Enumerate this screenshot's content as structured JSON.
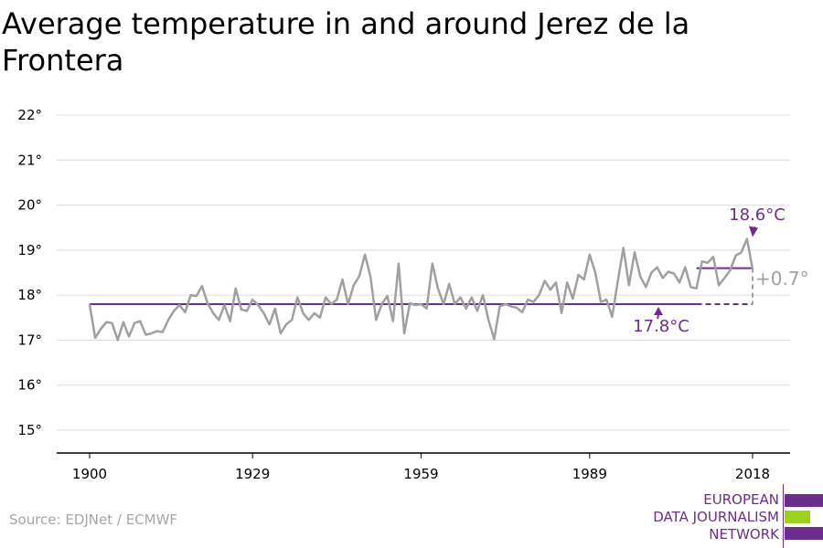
{
  "title": "Average temperature in and around Jerez de la Frontera",
  "source": "Source: EDJNet / ECMWF",
  "logo": {
    "lines": [
      "EUROPEAN",
      "DATA JOURNALISM",
      "NETWORK"
    ],
    "colors": [
      "#6c2d8c",
      "#9ed11f",
      "#6c2d8c"
    ]
  },
  "colors": {
    "series": "#a0a0a0",
    "accent": "#6c2d8c",
    "grid": "#dcdcdc",
    "axis": "#000000",
    "diff": "#a0a0a0"
  },
  "chart_data": {
    "type": "line",
    "title": "Average temperature in and around Jerez de la Frontera",
    "xlim": [
      1900,
      2018
    ],
    "ylim": [
      15,
      22
    ],
    "y_ticks": [
      15,
      16,
      17,
      18,
      19,
      20,
      21,
      22
    ],
    "y_tick_labels": [
      "15°",
      "16°",
      "17°",
      "18°",
      "19°",
      "20°",
      "21°",
      "22°"
    ],
    "x_ticks": [
      1900,
      1929,
      1959,
      1989,
      2018
    ],
    "x_tick_labels": [
      "1900",
      "1929",
      "1959",
      "1989",
      "2018"
    ],
    "grid": true,
    "x": [
      1900,
      1901,
      1902,
      1903,
      1904,
      1905,
      1906,
      1907,
      1908,
      1909,
      1910,
      1911,
      1912,
      1913,
      1914,
      1915,
      1916,
      1917,
      1918,
      1919,
      1920,
      1921,
      1922,
      1923,
      1924,
      1925,
      1926,
      1927,
      1928,
      1929,
      1930,
      1931,
      1932,
      1933,
      1934,
      1935,
      1936,
      1937,
      1938,
      1939,
      1940,
      1941,
      1942,
      1943,
      1944,
      1945,
      1946,
      1947,
      1948,
      1949,
      1950,
      1951,
      1952,
      1953,
      1954,
      1955,
      1956,
      1957,
      1958,
      1959,
      1960,
      1961,
      1962,
      1963,
      1964,
      1965,
      1966,
      1967,
      1968,
      1969,
      1970,
      1971,
      1972,
      1973,
      1974,
      1975,
      1976,
      1977,
      1978,
      1979,
      1980,
      1981,
      1982,
      1983,
      1984,
      1985,
      1986,
      1987,
      1988,
      1989,
      1990,
      1991,
      1992,
      1993,
      1994,
      1995,
      1996,
      1997,
      1998,
      1999,
      2000,
      2001,
      2002,
      2003,
      2004,
      2005,
      2006,
      2007,
      2008,
      2009,
      2010,
      2011,
      2012,
      2013,
      2014,
      2015,
      2016,
      2017,
      2018
    ],
    "series": [
      {
        "values": [
          17.8,
          17.05,
          17.25,
          17.4,
          17.38,
          17.0,
          17.4,
          17.08,
          17.38,
          17.42,
          17.12,
          17.15,
          17.2,
          17.18,
          17.45,
          17.65,
          17.78,
          17.62,
          18.0,
          17.98,
          18.2,
          17.82,
          17.6,
          17.45,
          17.78,
          17.42,
          18.15,
          17.68,
          17.65,
          17.9,
          17.78,
          17.6,
          17.35,
          17.7,
          17.15,
          17.35,
          17.45,
          17.95,
          17.6,
          17.45,
          17.6,
          17.5,
          17.95,
          17.8,
          17.9,
          18.35,
          17.8,
          18.22,
          18.42,
          18.9,
          18.4,
          17.45,
          17.8,
          17.98,
          17.42,
          18.7,
          17.15,
          17.82,
          17.78,
          17.8,
          17.7,
          18.7,
          18.15,
          17.8,
          18.25,
          17.8,
          17.95,
          17.7,
          17.95,
          17.65,
          18.0,
          17.45,
          17.02,
          17.75,
          17.8,
          17.75,
          17.72,
          17.62,
          17.9,
          17.85,
          18.0,
          18.32,
          18.12,
          18.28,
          17.6,
          18.28,
          17.92,
          18.45,
          18.35,
          18.9,
          18.5,
          17.85,
          17.9,
          17.52,
          18.3,
          19.05,
          18.22,
          18.95,
          18.42,
          18.18,
          18.5,
          18.62,
          18.38,
          18.52,
          18.48,
          18.28,
          18.62,
          18.18,
          18.15,
          18.75,
          18.72,
          18.85,
          18.22,
          18.38,
          18.55,
          18.88,
          18.95,
          19.25,
          18.58
        ]
      }
    ],
    "baseline": {
      "value": 17.8,
      "label": "17.8°C",
      "x_start": 1900,
      "x_end": 2018
    },
    "recent": {
      "value": 18.6,
      "label": "18.6°C",
      "x_start": 2008,
      "x_end": 2018
    },
    "difference_label": "+0.7°"
  }
}
